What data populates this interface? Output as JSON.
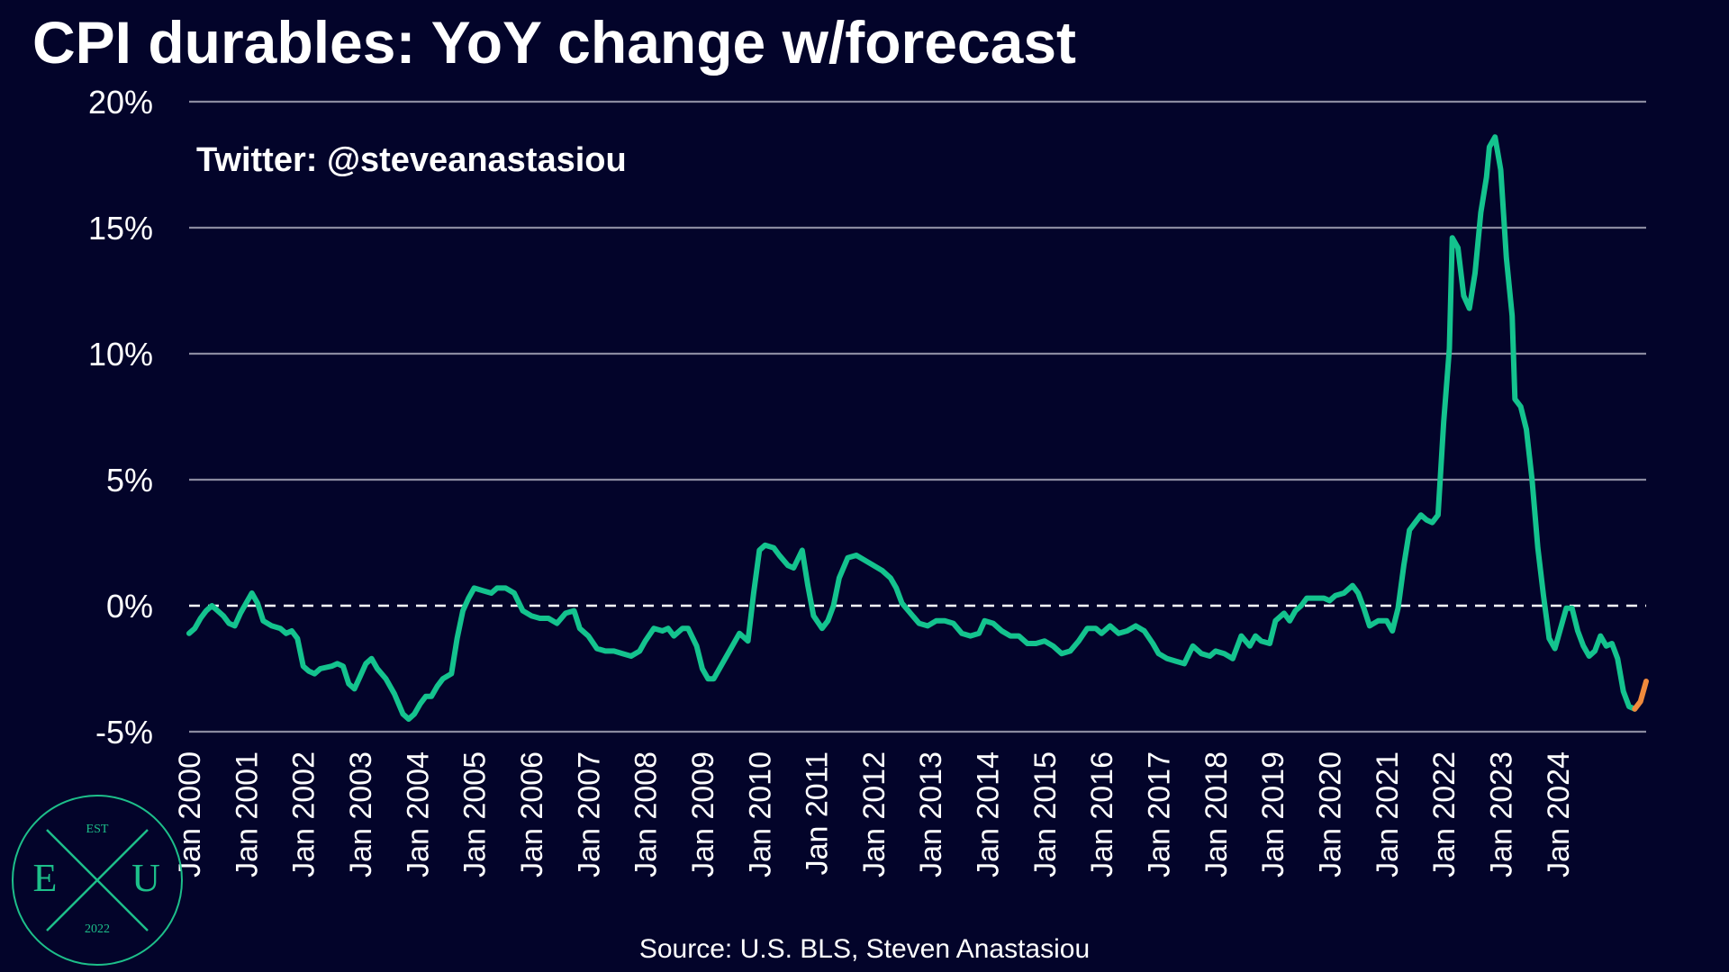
{
  "title": "CPI durables: YoY change w/forecast",
  "handle": "Twitter: @steveanastasiou",
  "source": "Source: U.S. BLS, Steven Anastasiou",
  "logo": {
    "est": "EST",
    "left": "E",
    "right": "U",
    "year": "2022",
    "color": "#1dbf8a"
  },
  "colors": {
    "background": "#03042a",
    "actual": "#14c38e",
    "forecast": "#f08a3c"
  },
  "chart_data": {
    "type": "line",
    "title": "CPI durables: YoY change w/forecast",
    "ylim": [
      -5,
      20
    ],
    "yticks": [
      -5,
      0,
      5,
      10,
      15,
      20
    ],
    "ytick_labels": [
      "-5%",
      "0%",
      "5%",
      "10%",
      "15%",
      "20%"
    ],
    "xlim": [
      2000.0,
      2024.83
    ],
    "xticks": [
      2000,
      2001,
      2002,
      2003,
      2004,
      2005,
      2006,
      2007,
      2008,
      2009,
      2010,
      2011,
      2012,
      2013,
      2014,
      2015,
      2016,
      2017,
      2018,
      2019,
      2020,
      2021,
      2022,
      2023,
      2024
    ],
    "xtick_labels": [
      "Jan 2000",
      "Jan 2001",
      "Jan 2002",
      "Jan 2003",
      "Jan 2004",
      "Jan 2005",
      "Jan 2006",
      "Jan 2007",
      "Jan 2008",
      "Jan 2009",
      "Jan 2010",
      "Jan 2011",
      "Jan 2012",
      "Jan 2013",
      "Jan 2014",
      "Jan 2015",
      "Jan 2016",
      "Jan 2017",
      "Jan 2018",
      "Jan 2019",
      "Jan 2020",
      "Jan 2021",
      "Jan 2022",
      "Jan 2023",
      "Jan 2024"
    ],
    "grid": true,
    "series": [
      {
        "role": "actual",
        "points": [
          [
            2000.0,
            -1.1
          ],
          [
            2000.1,
            -0.9
          ],
          [
            2000.2,
            -0.5
          ],
          [
            2000.3,
            -0.2
          ],
          [
            2000.4,
            0.0
          ],
          [
            2000.5,
            -0.2
          ],
          [
            2000.6,
            -0.4
          ],
          [
            2000.7,
            -0.7
          ],
          [
            2000.8,
            -0.8
          ],
          [
            2000.9,
            -0.3
          ],
          [
            2001.0,
            0.1
          ],
          [
            2001.1,
            0.5
          ],
          [
            2001.2,
            0.1
          ],
          [
            2001.3,
            -0.6
          ],
          [
            2001.45,
            -0.8
          ],
          [
            2001.6,
            -0.9
          ],
          [
            2001.7,
            -1.1
          ],
          [
            2001.8,
            -1.0
          ],
          [
            2001.9,
            -1.3
          ],
          [
            2002.0,
            -2.4
          ],
          [
            2002.1,
            -2.6
          ],
          [
            2002.2,
            -2.7
          ],
          [
            2002.3,
            -2.5
          ],
          [
            2002.5,
            -2.4
          ],
          [
            2002.6,
            -2.3
          ],
          [
            2002.7,
            -2.4
          ],
          [
            2002.8,
            -3.1
          ],
          [
            2002.9,
            -3.3
          ],
          [
            2003.0,
            -2.8
          ],
          [
            2003.1,
            -2.3
          ],
          [
            2003.2,
            -2.1
          ],
          [
            2003.3,
            -2.5
          ],
          [
            2003.45,
            -2.9
          ],
          [
            2003.6,
            -3.5
          ],
          [
            2003.75,
            -4.3
          ],
          [
            2003.85,
            -4.5
          ],
          [
            2003.95,
            -4.3
          ],
          [
            2004.05,
            -3.9
          ],
          [
            2004.15,
            -3.6
          ],
          [
            2004.25,
            -3.6
          ],
          [
            2004.35,
            -3.2
          ],
          [
            2004.45,
            -2.9
          ],
          [
            2004.6,
            -2.7
          ],
          [
            2004.7,
            -1.3
          ],
          [
            2004.8,
            -0.2
          ],
          [
            2004.9,
            0.3
          ],
          [
            2005.0,
            0.7
          ],
          [
            2005.15,
            0.6
          ],
          [
            2005.3,
            0.5
          ],
          [
            2005.4,
            0.7
          ],
          [
            2005.55,
            0.7
          ],
          [
            2005.7,
            0.5
          ],
          [
            2005.85,
            -0.2
          ],
          [
            2006.0,
            -0.4
          ],
          [
            2006.15,
            -0.5
          ],
          [
            2006.3,
            -0.5
          ],
          [
            2006.45,
            -0.7
          ],
          [
            2006.6,
            -0.3
          ],
          [
            2006.75,
            -0.2
          ],
          [
            2006.85,
            -0.9
          ],
          [
            2007.0,
            -1.2
          ],
          [
            2007.15,
            -1.7
          ],
          [
            2007.3,
            -1.8
          ],
          [
            2007.45,
            -1.8
          ],
          [
            2007.6,
            -1.9
          ],
          [
            2007.75,
            -2.0
          ],
          [
            2007.9,
            -1.8
          ],
          [
            2008.0,
            -1.4
          ],
          [
            2008.15,
            -0.9
          ],
          [
            2008.3,
            -1.0
          ],
          [
            2008.4,
            -0.9
          ],
          [
            2008.5,
            -1.2
          ],
          [
            2008.65,
            -0.9
          ],
          [
            2008.75,
            -0.9
          ],
          [
            2008.9,
            -1.6
          ],
          [
            2009.0,
            -2.5
          ],
          [
            2009.1,
            -2.9
          ],
          [
            2009.2,
            -2.9
          ],
          [
            2009.35,
            -2.3
          ],
          [
            2009.5,
            -1.7
          ],
          [
            2009.65,
            -1.1
          ],
          [
            2009.8,
            -1.4
          ],
          [
            2009.9,
            0.5
          ],
          [
            2010.0,
            2.2
          ],
          [
            2010.1,
            2.4
          ],
          [
            2010.25,
            2.3
          ],
          [
            2010.35,
            2.0
          ],
          [
            2010.5,
            1.6
          ],
          [
            2010.6,
            1.5
          ],
          [
            2010.75,
            2.2
          ],
          [
            2010.85,
            0.8
          ],
          [
            2010.95,
            -0.4
          ],
          [
            2011.1,
            -0.9
          ],
          [
            2011.2,
            -0.6
          ],
          [
            2011.3,
            0.0
          ],
          [
            2011.4,
            1.1
          ],
          [
            2011.55,
            1.9
          ],
          [
            2011.7,
            2.0
          ],
          [
            2011.85,
            1.8
          ],
          [
            2012.0,
            1.6
          ],
          [
            2012.15,
            1.4
          ],
          [
            2012.3,
            1.1
          ],
          [
            2012.4,
            0.7
          ],
          [
            2012.5,
            0.1
          ],
          [
            2012.65,
            -0.3
          ],
          [
            2012.8,
            -0.7
          ],
          [
            2012.95,
            -0.8
          ],
          [
            2013.1,
            -0.6
          ],
          [
            2013.25,
            -0.6
          ],
          [
            2013.4,
            -0.7
          ],
          [
            2013.55,
            -1.1
          ],
          [
            2013.7,
            -1.2
          ],
          [
            2013.85,
            -1.1
          ],
          [
            2013.95,
            -0.6
          ],
          [
            2014.1,
            -0.7
          ],
          [
            2014.25,
            -1.0
          ],
          [
            2014.4,
            -1.2
          ],
          [
            2014.55,
            -1.2
          ],
          [
            2014.7,
            -1.5
          ],
          [
            2014.85,
            -1.5
          ],
          [
            2015.0,
            -1.4
          ],
          [
            2015.15,
            -1.6
          ],
          [
            2015.3,
            -1.9
          ],
          [
            2015.45,
            -1.8
          ],
          [
            2015.6,
            -1.4
          ],
          [
            2015.75,
            -0.9
          ],
          [
            2015.9,
            -0.9
          ],
          [
            2016.0,
            -1.1
          ],
          [
            2016.15,
            -0.8
          ],
          [
            2016.3,
            -1.1
          ],
          [
            2016.45,
            -1.0
          ],
          [
            2016.6,
            -0.8
          ],
          [
            2016.75,
            -1.0
          ],
          [
            2016.9,
            -1.5
          ],
          [
            2017.0,
            -1.9
          ],
          [
            2017.15,
            -2.1
          ],
          [
            2017.3,
            -2.2
          ],
          [
            2017.45,
            -2.3
          ],
          [
            2017.6,
            -1.6
          ],
          [
            2017.75,
            -1.9
          ],
          [
            2017.9,
            -2.0
          ],
          [
            2018.0,
            -1.8
          ],
          [
            2018.15,
            -1.9
          ],
          [
            2018.3,
            -2.1
          ],
          [
            2018.45,
            -1.2
          ],
          [
            2018.6,
            -1.6
          ],
          [
            2018.7,
            -1.2
          ],
          [
            2018.8,
            -1.4
          ],
          [
            2018.95,
            -1.5
          ],
          [
            2019.05,
            -0.6
          ],
          [
            2019.2,
            -0.3
          ],
          [
            2019.3,
            -0.6
          ],
          [
            2019.4,
            -0.2
          ],
          [
            2019.5,
            0.0
          ],
          [
            2019.6,
            0.3
          ],
          [
            2019.75,
            0.3
          ],
          [
            2019.9,
            0.3
          ],
          [
            2020.0,
            0.2
          ],
          [
            2020.1,
            0.4
          ],
          [
            2020.25,
            0.5
          ],
          [
            2020.4,
            0.8
          ],
          [
            2020.5,
            0.5
          ],
          [
            2020.6,
            -0.1
          ],
          [
            2020.7,
            -0.8
          ],
          [
            2020.85,
            -0.6
          ],
          [
            2021.0,
            -0.6
          ],
          [
            2021.1,
            -1.0
          ],
          [
            2021.2,
            -0.1
          ],
          [
            2021.3,
            1.6
          ],
          [
            2021.4,
            3.0
          ],
          [
            2021.5,
            3.3
          ],
          [
            2021.6,
            3.6
          ],
          [
            2021.7,
            3.4
          ],
          [
            2021.8,
            3.3
          ],
          [
            2021.9,
            3.6
          ],
          [
            2022.0,
            7.3
          ],
          [
            2022.1,
            10.2
          ],
          [
            2022.15,
            14.6
          ],
          [
            2022.25,
            14.2
          ],
          [
            2022.35,
            12.3
          ],
          [
            2022.45,
            11.8
          ],
          [
            2022.55,
            13.2
          ],
          [
            2022.65,
            15.6
          ],
          [
            2022.75,
            17.0
          ],
          [
            2022.8,
            18.2
          ],
          [
            2022.9,
            18.6
          ],
          [
            2023.0,
            17.3
          ],
          [
            2023.1,
            13.8
          ],
          [
            2023.2,
            11.5
          ],
          [
            2023.25,
            8.2
          ],
          [
            2023.35,
            7.9
          ],
          [
            2023.45,
            7.0
          ],
          [
            2023.55,
            5.0
          ],
          [
            2023.65,
            2.3
          ],
          [
            2023.75,
            0.4
          ],
          [
            2023.85,
            -1.3
          ],
          [
            2023.95,
            -1.7
          ],
          [
            2024.05,
            -0.9
          ],
          [
            2024.15,
            -0.1
          ],
          [
            2024.25,
            -0.1
          ],
          [
            2024.35,
            -1.0
          ],
          [
            2024.45,
            -1.6
          ],
          [
            2024.55,
            -2.0
          ],
          [
            2024.65,
            -1.8
          ],
          [
            2024.75,
            -1.2
          ],
          [
            2024.85,
            -1.6
          ],
          [
            2024.95,
            -1.5
          ],
          [
            2025.05,
            -2.1
          ],
          [
            2025.15,
            -3.4
          ],
          [
            2025.25,
            -4.0
          ],
          [
            2025.35,
            -4.1
          ]
        ]
      },
      {
        "role": "forecast",
        "points": [
          [
            2025.35,
            -4.1
          ],
          [
            2025.45,
            -3.8
          ],
          [
            2025.55,
            -3.0
          ]
        ]
      }
    ]
  }
}
